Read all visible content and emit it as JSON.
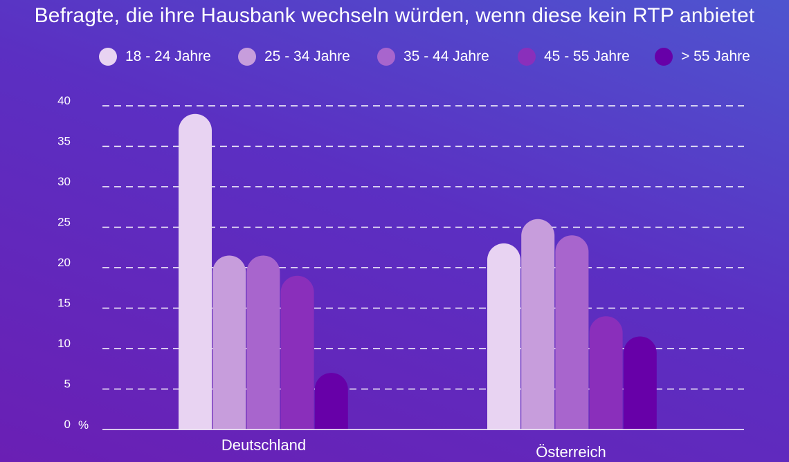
{
  "chart_data": {
    "type": "bar",
    "title": "Befragte, die ihre Hausbank wechseln würden, wenn diese kein RTP anbietet",
    "categories": [
      "Deutschland",
      "Österreich"
    ],
    "series": [
      {
        "name": "18 - 24 Jahre",
        "color": "#e8d3f2",
        "values": [
          39,
          23
        ]
      },
      {
        "name": "25 - 34 Jahre",
        "color": "#c79ddc",
        "values": [
          21.5,
          26
        ]
      },
      {
        "name": "35 - 44 Jahre",
        "color": "#a865cd",
        "values": [
          21.5,
          24
        ]
      },
      {
        "name": "45 - 55 Jahre",
        "color": "#8a2fbb",
        "values": [
          19,
          14
        ]
      },
      {
        "name": "> 55 Jahre",
        "color": "#6700a8",
        "values": [
          7,
          11.5
        ]
      }
    ],
    "y_ticks": [
      "0",
      "5",
      "10",
      "15",
      "20",
      "25",
      "30",
      "35",
      "40"
    ],
    "y_unit": "%",
    "ylim": [
      0,
      40
    ],
    "grid": true,
    "grid_style": "dashed",
    "legend_position": "top"
  }
}
